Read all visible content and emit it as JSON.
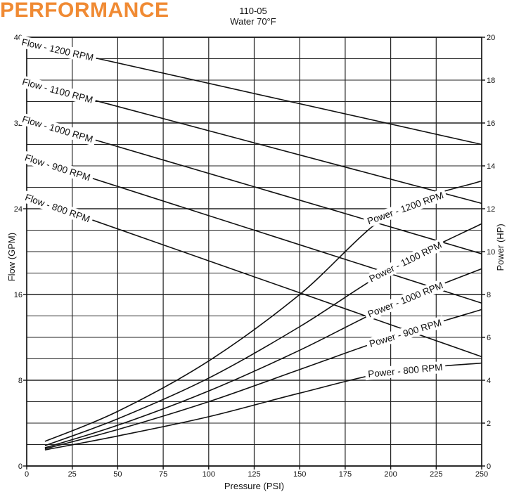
{
  "header": {
    "title": "PERFORMANCE",
    "model": "110-05",
    "condition": "Water 70°F"
  },
  "chart_data": {
    "type": "line",
    "title": "",
    "xlabel": "Pressure (PSI)",
    "ylabel": "Flow (GPM)",
    "y2label": "Power (HP)",
    "xlim": [
      0,
      250
    ],
    "ylim": [
      0,
      40
    ],
    "y2lim": [
      0,
      20
    ],
    "xticks": [
      0,
      25,
      50,
      75,
      100,
      125,
      150,
      175,
      200,
      225,
      250
    ],
    "yticks": [
      0,
      8,
      16,
      24,
      32,
      40
    ],
    "y2ticks": [
      0,
      2,
      4,
      6,
      8,
      10,
      12,
      14,
      16,
      18,
      20
    ],
    "grid": true,
    "series": [
      {
        "name": "Flow - 1200 RPM",
        "axis": "left",
        "x": [
          0,
          250
        ],
        "y": [
          39.5,
          30.0
        ]
      },
      {
        "name": "Flow - 1100 RPM",
        "axis": "left",
        "x": [
          0,
          250
        ],
        "y": [
          35.8,
          24.5
        ]
      },
      {
        "name": "Flow - 1000 RPM",
        "axis": "left",
        "x": [
          0,
          250
        ],
        "y": [
          32.3,
          19.8
        ]
      },
      {
        "name": "Flow - 900 RPM",
        "axis": "left",
        "x": [
          0,
          250
        ],
        "y": [
          28.8,
          15.2
        ]
      },
      {
        "name": "Flow - 800 RPM",
        "axis": "left",
        "x": [
          0,
          250
        ],
        "y": [
          25.1,
          10.2
        ]
      },
      {
        "name": "Power - 1200 RPM",
        "axis": "right",
        "x": [
          10,
          50,
          100,
          150,
          200,
          250
        ],
        "y": [
          1.15,
          2.55,
          4.9,
          8.0,
          11.8,
          13.3
        ]
      },
      {
        "name": "Power - 1100 RPM",
        "axis": "right",
        "x": [
          10,
          50,
          100,
          150,
          200,
          250
        ],
        "y": [
          0.95,
          2.2,
          4.1,
          6.5,
          9.2,
          11.3
        ]
      },
      {
        "name": "Power - 1000 RPM",
        "axis": "right",
        "x": [
          10,
          50,
          100,
          150,
          200,
          250
        ],
        "y": [
          0.85,
          1.9,
          3.5,
          5.4,
          7.5,
          9.2
        ]
      },
      {
        "name": "Power - 900 RPM",
        "axis": "right",
        "x": [
          10,
          50,
          100,
          150,
          200,
          250
        ],
        "y": [
          0.8,
          1.7,
          3.0,
          4.5,
          6.0,
          7.3
        ]
      },
      {
        "name": "Power - 800 RPM",
        "axis": "right",
        "x": [
          10,
          50,
          100,
          150,
          200,
          250
        ],
        "y": [
          0.75,
          1.4,
          2.3,
          3.4,
          4.4,
          4.8
        ]
      }
    ]
  }
}
